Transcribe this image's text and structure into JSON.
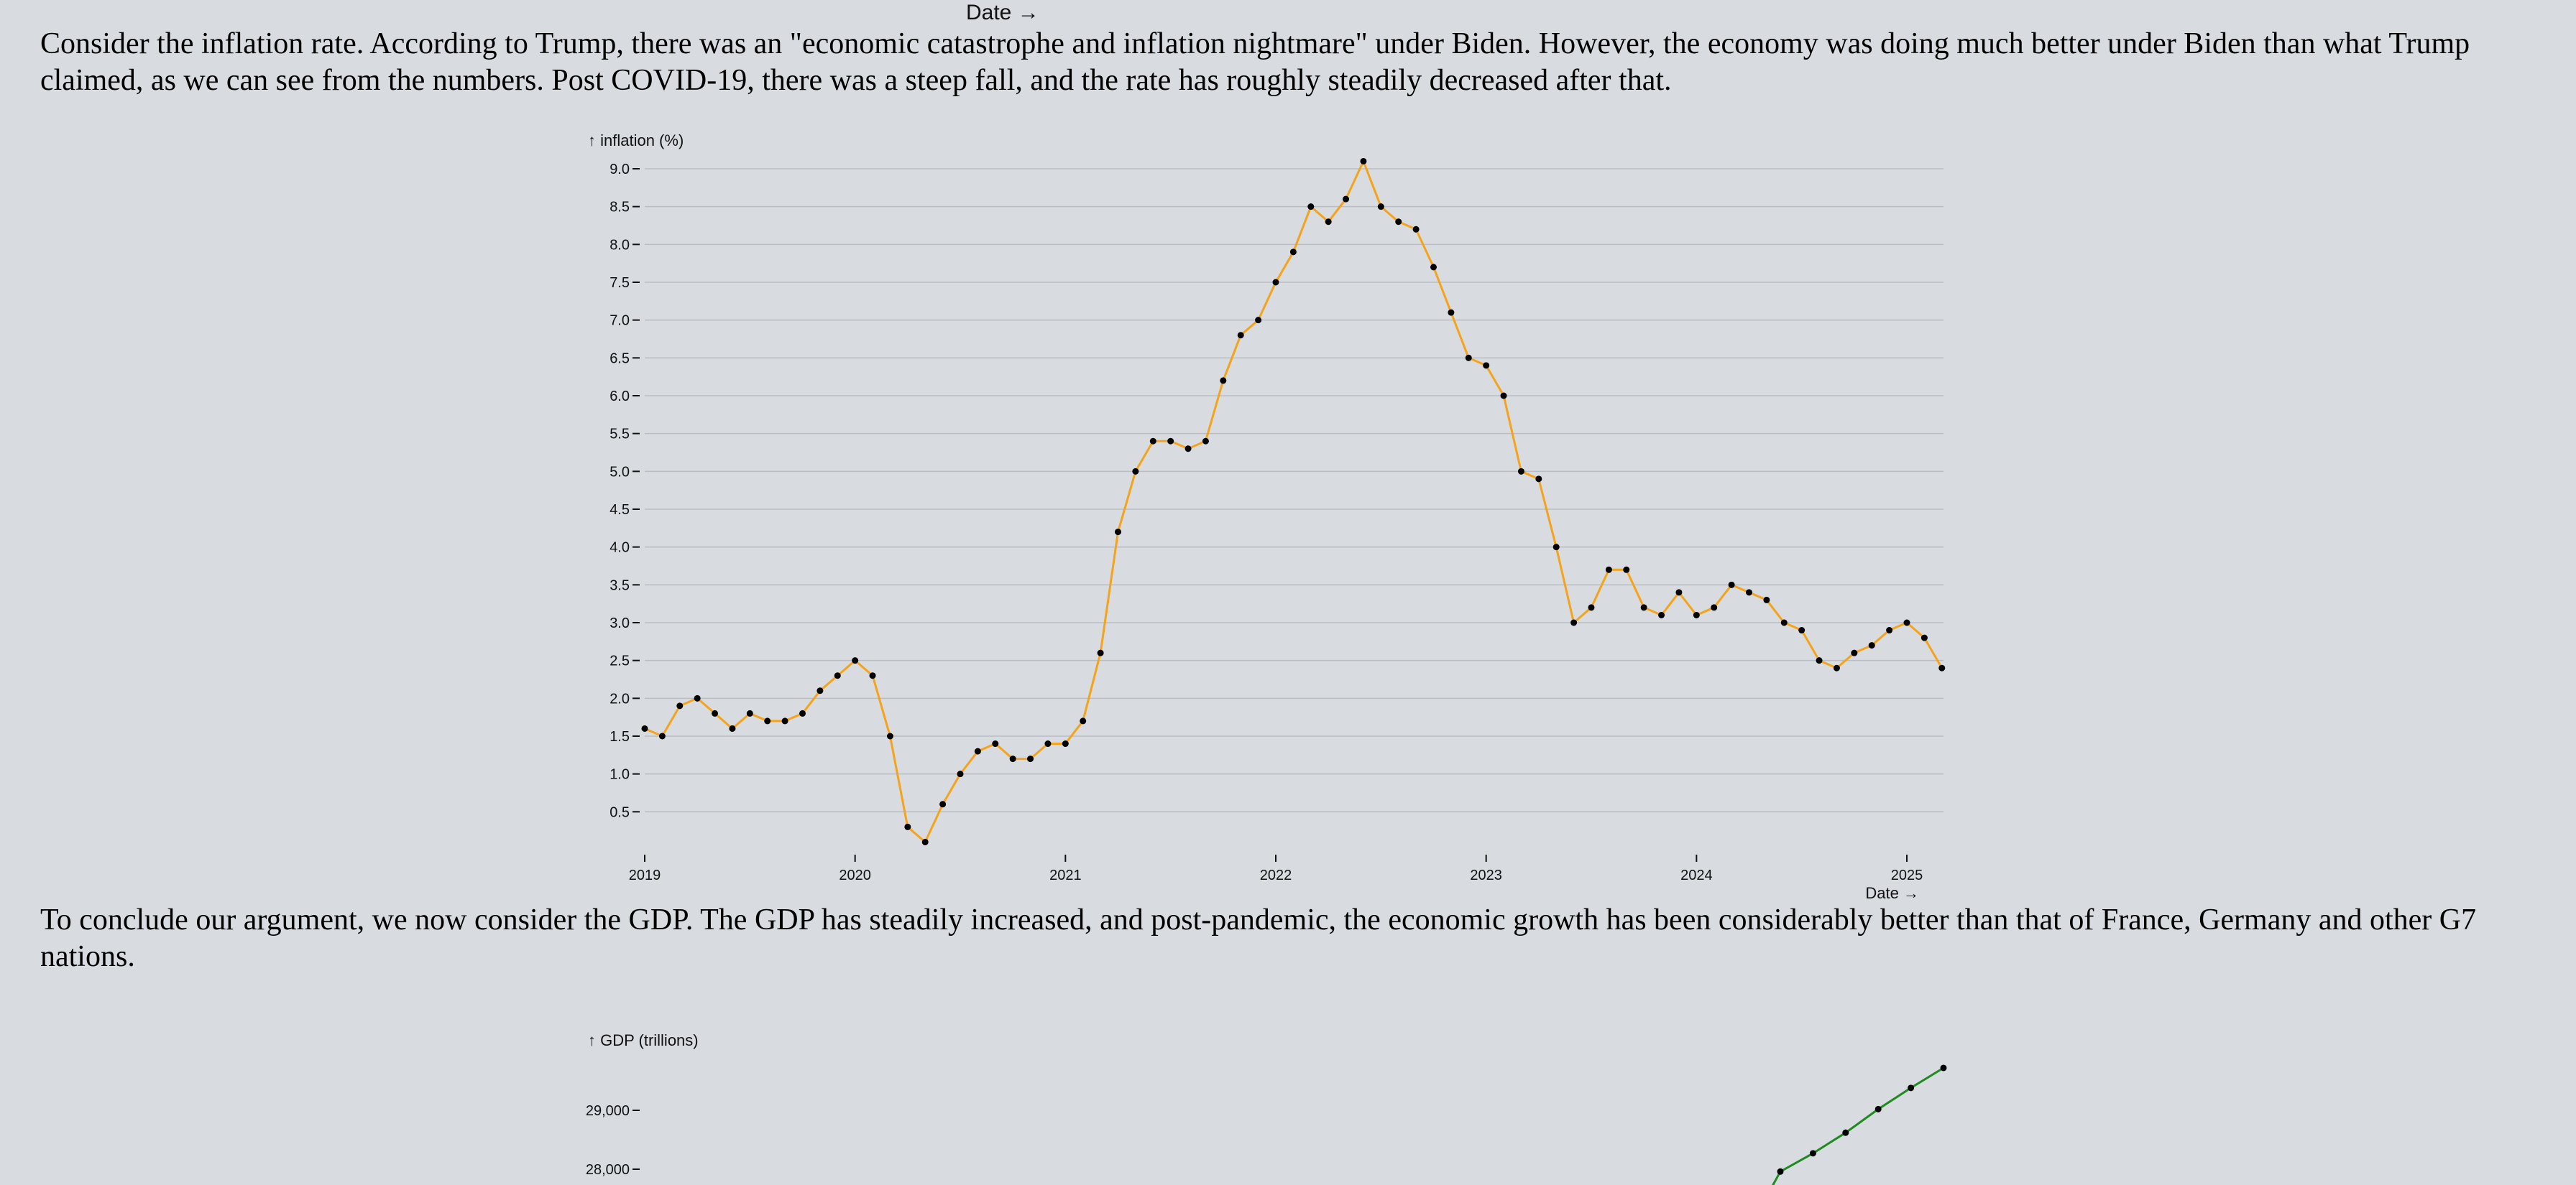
{
  "top_axis_label": "Date →",
  "paragraphs": [
    "Consider the inflation rate. According to Trump, there was an \"economic catastrophe and inflation nightmare\" under Biden. However, the economy was doing much better under Biden than what Trump claimed, as we can see from the numbers. Post COVID-19, there was a steep fall, and the rate has roughly steadily decreased after that.",
    "To conclude our argument, we now consider the GDP. The GDP has steadily increased, and post-pandemic, the economic growth has been considerably better than that of France, Germany and other G7 nations."
  ],
  "chart_data": [
    {
      "type": "line",
      "ylabel": "↑ inflation (%)",
      "xlabel": "Date →",
      "line_color": "#f5a31a",
      "point_color": "#000000",
      "grid": true,
      "ylim": [
        0.0,
        9.0
      ],
      "yticks": [
        "0.5",
        "1.0",
        "1.5",
        "2.0",
        "2.5",
        "3.0",
        "3.5",
        "4.0",
        "4.5",
        "5.0",
        "5.5",
        "6.0",
        "6.5",
        "7.0",
        "7.5",
        "8.0",
        "8.5",
        "9.0"
      ],
      "xticks": [
        "2019",
        "2020",
        "2021",
        "2022",
        "2023",
        "2024",
        "2025"
      ],
      "x": [
        "2019-01",
        "2019-02",
        "2019-03",
        "2019-04",
        "2019-05",
        "2019-06",
        "2019-07",
        "2019-08",
        "2019-09",
        "2019-10",
        "2019-11",
        "2019-12",
        "2020-01",
        "2020-02",
        "2020-03",
        "2020-04",
        "2020-05",
        "2020-06",
        "2020-07",
        "2020-08",
        "2020-09",
        "2020-10",
        "2020-11",
        "2020-12",
        "2021-01",
        "2021-02",
        "2021-03",
        "2021-04",
        "2021-05",
        "2021-06",
        "2021-07",
        "2021-08",
        "2021-09",
        "2021-10",
        "2021-11",
        "2021-12",
        "2022-01",
        "2022-02",
        "2022-03",
        "2022-04",
        "2022-05",
        "2022-06",
        "2022-07",
        "2022-08",
        "2022-09",
        "2022-10",
        "2022-11",
        "2022-12",
        "2023-01",
        "2023-02",
        "2023-03",
        "2023-04",
        "2023-05",
        "2023-06",
        "2023-07",
        "2023-08",
        "2023-09",
        "2023-10",
        "2023-11",
        "2023-12",
        "2024-01",
        "2024-02",
        "2024-03",
        "2024-04",
        "2024-05",
        "2024-06",
        "2024-07",
        "2024-08",
        "2024-09",
        "2024-10",
        "2024-11",
        "2024-12",
        "2025-01",
        "2025-02",
        "2025-03"
      ],
      "y": [
        1.6,
        1.5,
        1.9,
        2.0,
        1.8,
        1.6,
        1.8,
        1.7,
        1.7,
        1.8,
        2.1,
        2.3,
        2.5,
        2.3,
        1.5,
        0.3,
        0.1,
        0.6,
        1.0,
        1.3,
        1.4,
        1.2,
        1.2,
        1.4,
        1.4,
        1.7,
        2.6,
        4.2,
        5.0,
        5.4,
        5.4,
        5.3,
        5.4,
        6.2,
        6.8,
        7.0,
        7.5,
        7.9,
        8.5,
        8.3,
        8.6,
        9.1,
        8.5,
        8.3,
        8.2,
        7.7,
        7.1,
        6.5,
        6.4,
        6.0,
        5.0,
        4.9,
        4.0,
        3.0,
        3.2,
        3.7,
        3.7,
        3.2,
        3.1,
        3.4,
        3.1,
        3.2,
        3.5,
        3.4,
        3.3,
        3.0,
        2.9,
        2.5,
        2.4,
        2.6,
        2.7,
        2.9,
        3.0,
        2.8,
        2.4
      ]
    },
    {
      "type": "line",
      "ylabel": "↑ GDP (trillions)",
      "line_color": "#1f8a1f",
      "point_color": "#000000",
      "yticks": [
        "29,000",
        "28,000"
      ],
      "ytick_values": [
        29000,
        28000
      ],
      "x": [
        "2023-Q4",
        "2024-Q1",
        "2024-Q2",
        "2024-Q3",
        "2024-Q4",
        "2025-Q1"
      ],
      "y": [
        27960,
        28270,
        28620,
        29020,
        29380,
        29720
      ]
    }
  ]
}
